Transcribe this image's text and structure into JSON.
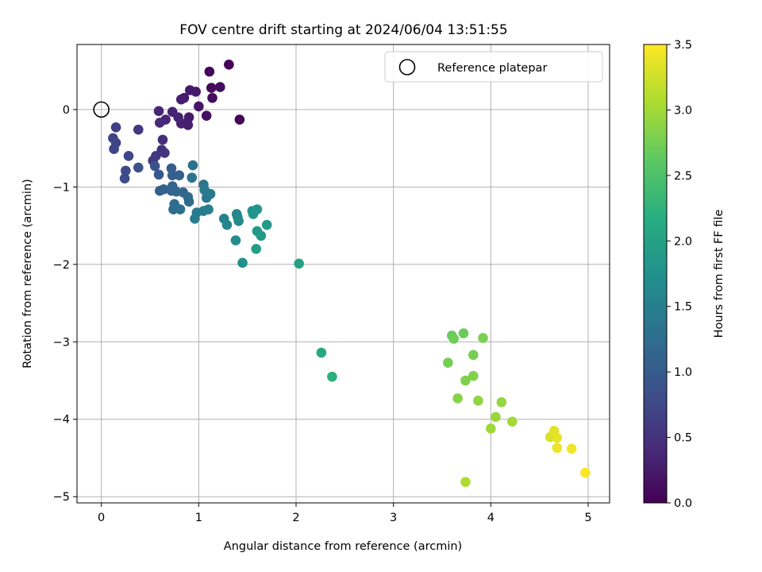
{
  "chart_data": {
    "type": "scatter",
    "title": "FOV centre drift starting at 2024/06/04 13:51:55",
    "xlabel": "Angular distance from reference (arcmin)",
    "ylabel": "Rotation from reference (arcmin)",
    "xlim": [
      -0.25,
      5.22
    ],
    "ylim": [
      -5.08,
      0.84
    ],
    "xticks": [
      0,
      1,
      2,
      3,
      4,
      5
    ],
    "yticks": [
      0,
      -1,
      -2,
      -3,
      -4,
      -5
    ],
    "grid": true,
    "legend": {
      "placement": "top-right",
      "entries": [
        "Reference platepar"
      ]
    },
    "reference_point": {
      "x": 0,
      "y": 0
    },
    "colorbar": {
      "label": "Hours from first FF file",
      "colormap": "viridis",
      "range": [
        0,
        3.5
      ],
      "ticks": [
        "0.0",
        "0.5",
        "1.0",
        "1.5",
        "2.0",
        "2.5",
        "3.0",
        "3.5"
      ]
    },
    "points": [
      {
        "x": 1.31,
        "y": 0.58,
        "c": 0.02
      },
      {
        "x": 1.11,
        "y": 0.49,
        "c": 0.05
      },
      {
        "x": 1.13,
        "y": 0.28,
        "c": 0.08
      },
      {
        "x": 1.22,
        "y": 0.29,
        "c": 0.1
      },
      {
        "x": 1.14,
        "y": 0.15,
        "c": 0.1
      },
      {
        "x": 1.42,
        "y": -0.13,
        "c": 0.05
      },
      {
        "x": 1.08,
        "y": -0.08,
        "c": 0.15
      },
      {
        "x": 1.0,
        "y": 0.04,
        "c": 0.2
      },
      {
        "x": 0.97,
        "y": 0.23,
        "c": 0.22
      },
      {
        "x": 0.91,
        "y": 0.25,
        "c": 0.25
      },
      {
        "x": 0.85,
        "y": 0.15,
        "c": 0.28
      },
      {
        "x": 0.82,
        "y": 0.13,
        "c": 0.3
      },
      {
        "x": 0.9,
        "y": -0.1,
        "c": 0.25
      },
      {
        "x": 0.88,
        "y": -0.17,
        "c": 0.28
      },
      {
        "x": 0.89,
        "y": -0.2,
        "c": 0.3
      },
      {
        "x": 0.82,
        "y": -0.18,
        "c": 0.32
      },
      {
        "x": 0.79,
        "y": -0.1,
        "c": 0.35
      },
      {
        "x": 0.73,
        "y": -0.03,
        "c": 0.35
      },
      {
        "x": 0.66,
        "y": -0.13,
        "c": 0.38
      },
      {
        "x": 0.59,
        "y": -0.02,
        "c": 0.38
      },
      {
        "x": 0.6,
        "y": -0.17,
        "c": 0.42
      },
      {
        "x": 0.63,
        "y": -0.39,
        "c": 0.45
      },
      {
        "x": 0.62,
        "y": -0.52,
        "c": 0.5
      },
      {
        "x": 0.65,
        "y": -0.56,
        "c": 0.52
      },
      {
        "x": 0.56,
        "y": -0.6,
        "c": 0.55
      },
      {
        "x": 0.53,
        "y": -0.66,
        "c": 0.58
      },
      {
        "x": 0.38,
        "y": -0.26,
        "c": 0.58
      },
      {
        "x": 0.15,
        "y": -0.23,
        "c": 0.65
      },
      {
        "x": 0.12,
        "y": -0.37,
        "c": 0.68
      },
      {
        "x": 0.15,
        "y": -0.43,
        "c": 0.7
      },
      {
        "x": 0.13,
        "y": -0.51,
        "c": 0.72
      },
      {
        "x": 0.28,
        "y": -0.6,
        "c": 0.75
      },
      {
        "x": 0.25,
        "y": -0.79,
        "c": 0.8
      },
      {
        "x": 0.24,
        "y": -0.89,
        "c": 0.82
      },
      {
        "x": 0.38,
        "y": -0.75,
        "c": 0.85
      },
      {
        "x": 0.55,
        "y": -0.73,
        "c": 0.9
      },
      {
        "x": 0.59,
        "y": -0.84,
        "c": 0.95
      },
      {
        "x": 0.72,
        "y": -0.76,
        "c": 1.0
      },
      {
        "x": 0.73,
        "y": -0.85,
        "c": 1.05
      },
      {
        "x": 0.8,
        "y": -0.85,
        "c": 1.05
      },
      {
        "x": 0.6,
        "y": -1.05,
        "c": 1.05
      },
      {
        "x": 0.64,
        "y": -1.03,
        "c": 1.1
      },
      {
        "x": 0.73,
        "y": -0.99,
        "c": 1.1
      },
      {
        "x": 0.72,
        "y": -1.05,
        "c": 1.12
      },
      {
        "x": 0.77,
        "y": -1.06,
        "c": 1.15
      },
      {
        "x": 0.84,
        "y": -1.07,
        "c": 1.15
      },
      {
        "x": 0.89,
        "y": -1.13,
        "c": 1.2
      },
      {
        "x": 0.9,
        "y": -1.19,
        "c": 1.22
      },
      {
        "x": 0.75,
        "y": -1.22,
        "c": 1.25
      },
      {
        "x": 0.74,
        "y": -1.29,
        "c": 1.25
      },
      {
        "x": 0.81,
        "y": -1.29,
        "c": 1.28
      },
      {
        "x": 0.94,
        "y": -0.72,
        "c": 1.3
      },
      {
        "x": 0.93,
        "y": -0.88,
        "c": 1.32
      },
      {
        "x": 1.05,
        "y": -0.97,
        "c": 1.35
      },
      {
        "x": 1.06,
        "y": -1.04,
        "c": 1.38
      },
      {
        "x": 1.08,
        "y": -1.14,
        "c": 1.38
      },
      {
        "x": 1.12,
        "y": -1.09,
        "c": 1.42
      },
      {
        "x": 0.98,
        "y": -1.33,
        "c": 1.42
      },
      {
        "x": 0.96,
        "y": -1.41,
        "c": 1.45
      },
      {
        "x": 1.05,
        "y": -1.31,
        "c": 1.45
      },
      {
        "x": 1.1,
        "y": -1.29,
        "c": 1.5
      },
      {
        "x": 1.26,
        "y": -1.41,
        "c": 1.55
      },
      {
        "x": 1.29,
        "y": -1.49,
        "c": 1.58
      },
      {
        "x": 1.39,
        "y": -1.35,
        "c": 1.6
      },
      {
        "x": 1.4,
        "y": -1.39,
        "c": 1.62
      },
      {
        "x": 1.41,
        "y": -1.44,
        "c": 1.65
      },
      {
        "x": 1.38,
        "y": -1.69,
        "c": 1.7
      },
      {
        "x": 1.45,
        "y": -1.98,
        "c": 1.75
      },
      {
        "x": 1.55,
        "y": -1.31,
        "c": 1.78
      },
      {
        "x": 1.56,
        "y": -1.35,
        "c": 1.8
      },
      {
        "x": 1.6,
        "y": -1.29,
        "c": 1.82
      },
      {
        "x": 1.6,
        "y": -1.57,
        "c": 1.85
      },
      {
        "x": 1.64,
        "y": -1.63,
        "c": 1.88
      },
      {
        "x": 1.7,
        "y": -1.49,
        "c": 1.9
      },
      {
        "x": 1.59,
        "y": -1.8,
        "c": 1.92
      },
      {
        "x": 2.03,
        "y": -1.99,
        "c": 2.0
      },
      {
        "x": 2.26,
        "y": -3.14,
        "c": 2.1
      },
      {
        "x": 2.37,
        "y": -3.45,
        "c": 2.2
      },
      {
        "x": 3.6,
        "y": -2.92,
        "c": 2.68
      },
      {
        "x": 3.72,
        "y": -2.89,
        "c": 2.7
      },
      {
        "x": 3.62,
        "y": -2.96,
        "c": 2.72
      },
      {
        "x": 3.56,
        "y": -3.27,
        "c": 2.74
      },
      {
        "x": 3.82,
        "y": -3.17,
        "c": 2.76
      },
      {
        "x": 3.92,
        "y": -2.95,
        "c": 2.78
      },
      {
        "x": 3.74,
        "y": -3.5,
        "c": 2.8
      },
      {
        "x": 3.82,
        "y": -3.44,
        "c": 2.82
      },
      {
        "x": 3.66,
        "y": -3.73,
        "c": 2.85
      },
      {
        "x": 3.87,
        "y": -3.76,
        "c": 2.9
      },
      {
        "x": 4.11,
        "y": -3.78,
        "c": 2.92
      },
      {
        "x": 4.05,
        "y": -3.97,
        "c": 2.95
      },
      {
        "x": 4.0,
        "y": -4.12,
        "c": 2.98
      },
      {
        "x": 4.22,
        "y": -4.03,
        "c": 3.0
      },
      {
        "x": 3.74,
        "y": -4.81,
        "c": 3.05
      },
      {
        "x": 4.61,
        "y": -4.23,
        "c": 3.3
      },
      {
        "x": 4.65,
        "y": -4.15,
        "c": 3.35
      },
      {
        "x": 4.68,
        "y": -4.24,
        "c": 3.38
      },
      {
        "x": 4.68,
        "y": -4.37,
        "c": 3.4
      },
      {
        "x": 4.83,
        "y": -4.38,
        "c": 3.42
      },
      {
        "x": 4.97,
        "y": -4.69,
        "c": 3.48
      }
    ]
  }
}
